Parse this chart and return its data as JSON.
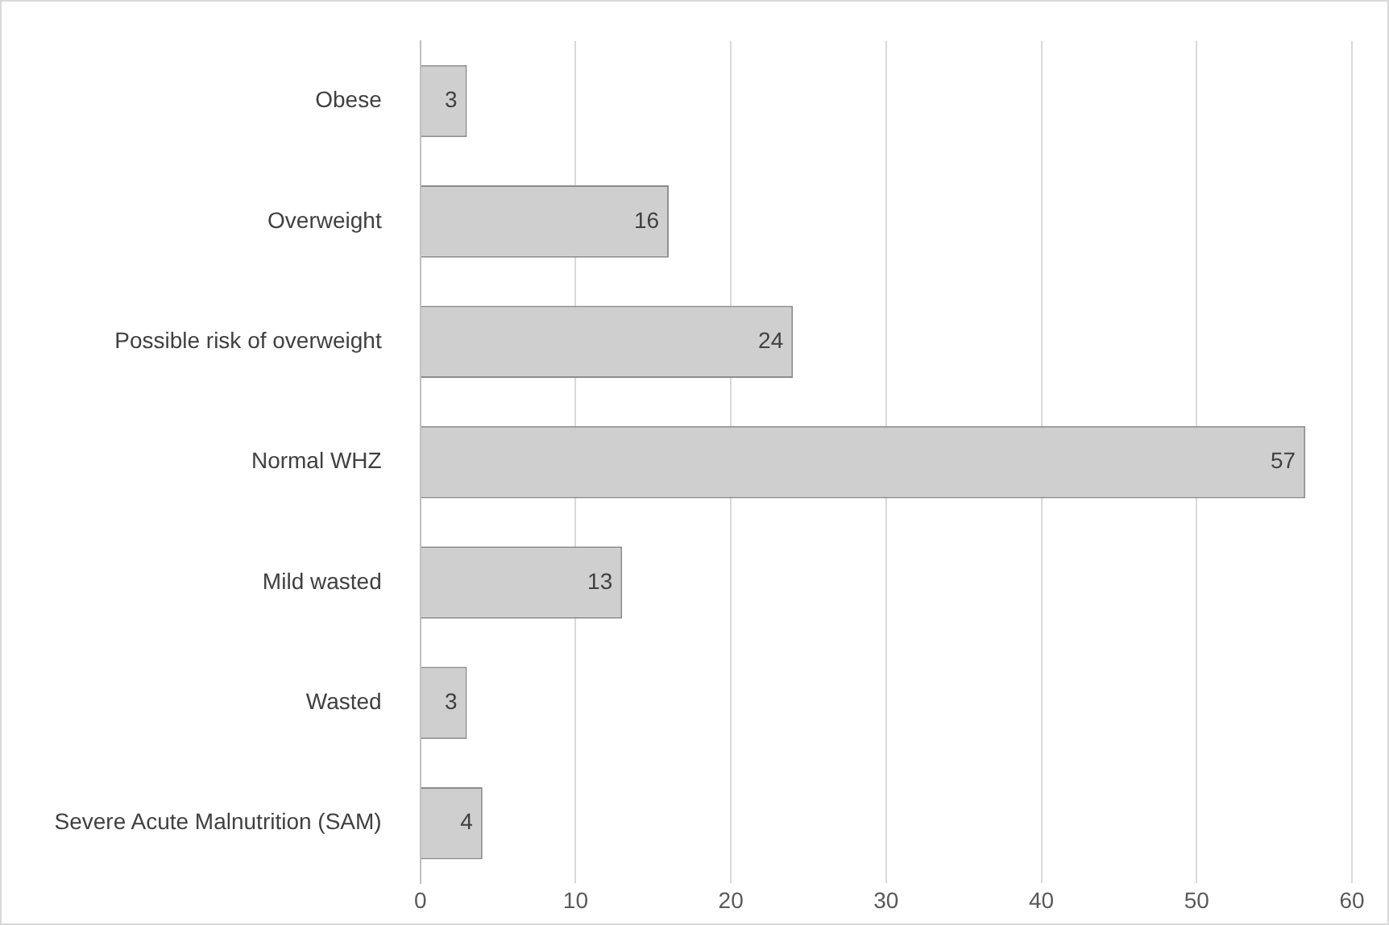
{
  "chart_data": {
    "type": "bar",
    "orientation": "horizontal",
    "categories": [
      "Obese",
      "Overweight",
      "Possible risk of overweight",
      "Normal WHZ",
      "Mild wasted",
      "Wasted",
      "Severe Acute Malnutrition (SAM)"
    ],
    "values": [
      3,
      16,
      24,
      57,
      13,
      3,
      4
    ],
    "color": "#cfcfcf",
    "xlim": [
      0,
      60
    ],
    "xticks": [
      0,
      10,
      20,
      30,
      40,
      50,
      60
    ],
    "grid": "x",
    "data_labels": true
  }
}
